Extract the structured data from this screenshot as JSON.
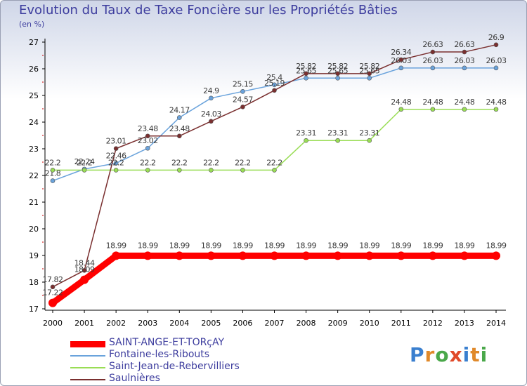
{
  "title": "Evolution du Taux de Taxe Foncière sur les Propriétés Bâties",
  "unit_label": "(en %)",
  "logo": "Proxiti",
  "chart_data": {
    "type": "line",
    "title": "Evolution du Taux de Taxe Foncière sur les Propriétés Bâties",
    "ylabel": "(en %)",
    "xlabel": "",
    "ylim": [
      17,
      27
    ],
    "yticks": [
      "17",
      "18",
      "19",
      "20",
      "21",
      "22",
      "23",
      "24",
      "25",
      "26",
      "27"
    ],
    "categories": [
      "2000",
      "2001",
      "2002",
      "2003",
      "2004",
      "2005",
      "2006",
      "2007",
      "2008",
      "2009",
      "2010",
      "2011",
      "2012",
      "2013",
      "2014"
    ],
    "legend_position": "bottom",
    "grid": false,
    "series": [
      {
        "name": "SAINT-ANGE-ET-TORçAY",
        "color": "#ff0000",
        "values": [
          17.22,
          18.09,
          18.99,
          18.99,
          18.99,
          18.99,
          18.99,
          18.99,
          18.99,
          18.99,
          18.99,
          18.99,
          18.99,
          18.99,
          18.99
        ],
        "labels": [
          "17.22",
          "18.09",
          "18.99",
          "18.99",
          "18.99",
          "18.99",
          "18.99",
          "18.99",
          "18.99",
          "18.99",
          "18.99",
          "18.99",
          "18.99",
          "18.99",
          "18.99"
        ]
      },
      {
        "name": "Fontaine-les-Ribouts",
        "color": "#6aa3dc",
        "values": [
          21.8,
          22.24,
          22.46,
          23.02,
          24.17,
          24.9,
          25.15,
          25.4,
          25.65,
          25.65,
          25.65,
          26.03,
          26.03,
          26.03,
          26.03
        ],
        "labels": [
          "21.8",
          "22.24",
          "22.46",
          "23.02",
          "24.17",
          "24.9",
          "25.15",
          "25.4",
          "25.65",
          "25.65",
          "25.65",
          "26.03",
          "26.03",
          "26.03",
          "26.03"
        ]
      },
      {
        "name": "Saint-Jean-de-Rebervilliers",
        "color": "#99dd55",
        "values": [
          22.2,
          22.2,
          22.2,
          22.2,
          22.2,
          22.2,
          22.2,
          22.2,
          23.31,
          23.31,
          23.31,
          24.48,
          24.48,
          24.48,
          24.48
        ],
        "labels": [
          "22.2",
          "22.2",
          "22.2",
          "22.2",
          "22.2",
          "22.2",
          "22.2",
          "22.2",
          "23.31",
          "23.31",
          "23.31",
          "24.48",
          "24.48",
          "24.48",
          "24.48"
        ]
      },
      {
        "name": "Saulnières",
        "color": "#7a2f2f",
        "values": [
          17.82,
          18.44,
          23.01,
          23.48,
          23.48,
          24.03,
          24.57,
          25.19,
          25.82,
          25.82,
          25.82,
          26.34,
          26.63,
          26.63,
          26.9
        ],
        "labels": [
          "17.82",
          "18.44",
          "23.01",
          "23.48",
          "23.48",
          "24.03",
          "24.57",
          "25.19",
          "25.82",
          "25.82",
          "25.82",
          "26.34",
          "26.63",
          "26.63",
          "26.9"
        ]
      }
    ]
  },
  "legend": [
    {
      "label": "SAINT-ANGE-ET-TORçAY",
      "color": "#ff0000"
    },
    {
      "label": "Fontaine-les-Ribouts",
      "color": "#6aa3dc"
    },
    {
      "label": "Saint-Jean-de-Rebervilliers",
      "color": "#99dd55"
    },
    {
      "label": "Saulnières",
      "color": "#7a2f2f"
    }
  ]
}
